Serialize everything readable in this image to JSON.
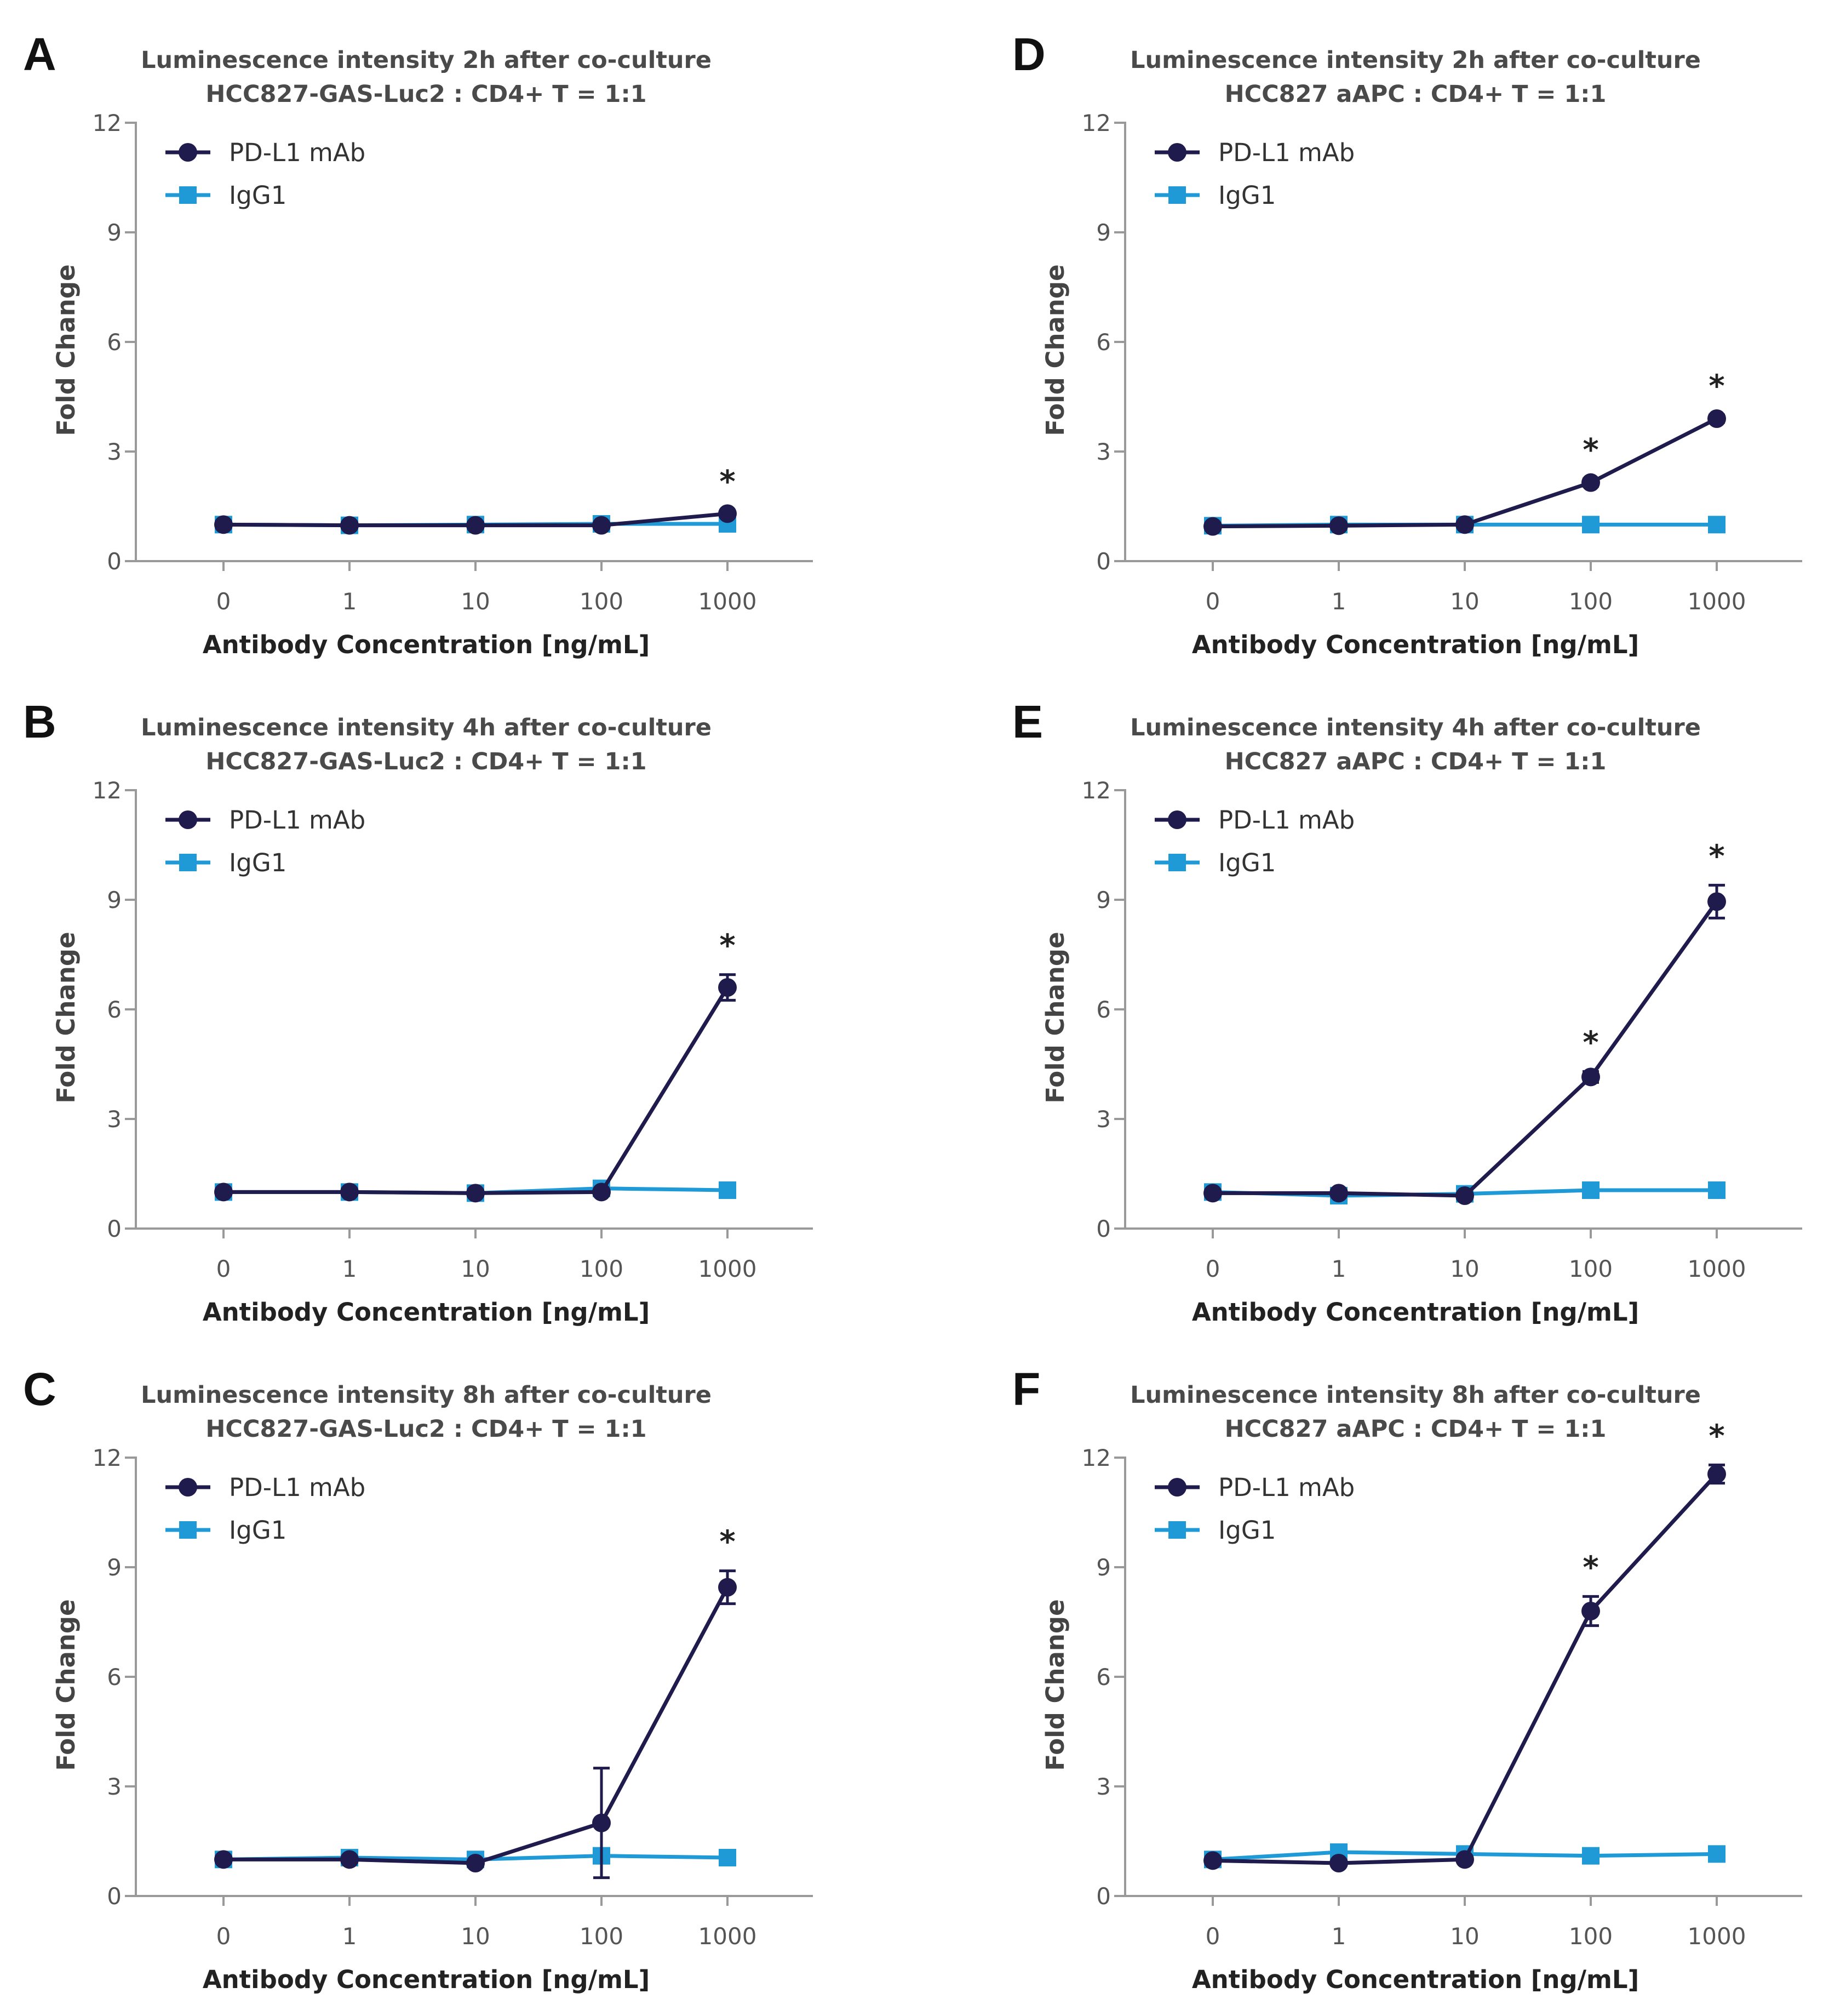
{
  "colors": {
    "pd_l1": "#1f1b4d",
    "igg1": "#1f9ad6",
    "axis": "#999999"
  },
  "chart_data": [
    {
      "panel": "A",
      "type": "line",
      "title": "Luminescence intensity 2h after co-culture",
      "subtitle": "HCC827-GAS-Luc2 : CD4+ T = 1:1",
      "xlabel": "Antibody  Concentration  [ng/mL]",
      "ylabel": "Fold Change",
      "categories": [
        "0",
        "1",
        "10",
        "100",
        "1000"
      ],
      "yticks": [
        "0",
        "3",
        "6",
        "9",
        "12"
      ],
      "ylim": [
        0,
        12
      ],
      "series": [
        {
          "name": "PD-L1 mAb",
          "marker": "circle",
          "values": [
            1.0,
            0.98,
            0.98,
            0.98,
            1.3
          ],
          "errors": [
            0,
            0,
            0,
            0,
            0.08
          ],
          "significance": [
            "",
            "",
            "",
            "",
            "*"
          ]
        },
        {
          "name": "IgG1",
          "marker": "square",
          "values": [
            1.0,
            0.98,
            1.0,
            1.02,
            1.02
          ],
          "errors": [
            0,
            0,
            0,
            0,
            0
          ]
        }
      ]
    },
    {
      "panel": "B",
      "type": "line",
      "title": "Luminescence intensity 4h after co-culture",
      "subtitle": "HCC827-GAS-Luc2 : CD4+ T = 1:1",
      "xlabel": "Antibody  Concentration  [ng/mL]",
      "ylabel": "Fold Change",
      "categories": [
        "0",
        "1",
        "10",
        "100",
        "1000"
      ],
      "yticks": [
        "0",
        "3",
        "6",
        "9",
        "12"
      ],
      "ylim": [
        0,
        12
      ],
      "series": [
        {
          "name": "PD-L1 mAb",
          "marker": "circle",
          "values": [
            1.0,
            1.0,
            0.97,
            1.0,
            6.6
          ],
          "errors": [
            0,
            0,
            0,
            0,
            0.35
          ],
          "significance": [
            "",
            "",
            "",
            "",
            "*"
          ]
        },
        {
          "name": "IgG1",
          "marker": "square",
          "values": [
            1.0,
            1.0,
            0.97,
            1.1,
            1.05
          ],
          "errors": [
            0,
            0,
            0,
            0,
            0
          ]
        }
      ]
    },
    {
      "panel": "C",
      "type": "line",
      "title": "Luminescence intensity 8h after co-culture",
      "subtitle": "HCC827-GAS-Luc2 : CD4+ T = 1:1",
      "xlabel": "Antibody  Concentration  [ng/mL]",
      "ylabel": "Fold Change",
      "categories": [
        "0",
        "1",
        "10",
        "100",
        "1000"
      ],
      "yticks": [
        "0",
        "3",
        "6",
        "9",
        "12"
      ],
      "ylim": [
        0,
        12
      ],
      "series": [
        {
          "name": "PD-L1 mAb",
          "marker": "circle",
          "values": [
            1.0,
            1.0,
            0.9,
            2.0,
            8.45
          ],
          "errors": [
            0,
            0,
            0,
            1.5,
            0.45
          ],
          "significance": [
            "",
            "",
            "",
            "",
            "*"
          ]
        },
        {
          "name": "IgG1",
          "marker": "square",
          "values": [
            1.0,
            1.05,
            1.0,
            1.1,
            1.05
          ],
          "errors": [
            0,
            0,
            0,
            0,
            0
          ]
        }
      ]
    },
    {
      "panel": "D",
      "type": "line",
      "title": "Luminescence intensity 2h after co-culture",
      "subtitle": "HCC827 aAPC : CD4+ T = 1:1",
      "xlabel": "Antibody  Concentration  [ng/mL]",
      "ylabel": "Fold Change",
      "categories": [
        "0",
        "1",
        "10",
        "100",
        "1000"
      ],
      "yticks": [
        "0",
        "3",
        "6",
        "9",
        "12"
      ],
      "ylim": [
        0,
        12
      ],
      "series": [
        {
          "name": "PD-L1 mAb",
          "marker": "circle",
          "values": [
            0.95,
            0.97,
            1.0,
            2.15,
            3.9
          ],
          "errors": [
            0,
            0,
            0,
            0.1,
            0.1
          ],
          "significance": [
            "",
            "",
            "",
            "*",
            "*"
          ]
        },
        {
          "name": "IgG1",
          "marker": "square",
          "values": [
            0.97,
            1.0,
            1.0,
            1.0,
            1.0
          ],
          "errors": [
            0,
            0,
            0,
            0,
            0
          ]
        }
      ]
    },
    {
      "panel": "E",
      "type": "line",
      "title": "Luminescence intensity 4h after co-culture",
      "subtitle": "HCC827 aAPC : CD4+ T = 1:1",
      "xlabel": "Antibody  Concentration  [ng/mL]",
      "ylabel": "Fold Change",
      "categories": [
        "0",
        "1",
        "10",
        "100",
        "1000"
      ],
      "yticks": [
        "0",
        "3",
        "6",
        "9",
        "12"
      ],
      "ylim": [
        0,
        12
      ],
      "series": [
        {
          "name": "PD-L1 mAb",
          "marker": "circle",
          "values": [
            0.97,
            0.97,
            0.9,
            4.15,
            8.95
          ],
          "errors": [
            0,
            0,
            0,
            0.15,
            0.45
          ],
          "significance": [
            "",
            "",
            "",
            "*",
            "*"
          ]
        },
        {
          "name": "IgG1",
          "marker": "square",
          "values": [
            1.0,
            0.9,
            0.95,
            1.05,
            1.05
          ],
          "errors": [
            0,
            0,
            0,
            0,
            0
          ]
        }
      ]
    },
    {
      "panel": "F",
      "type": "line",
      "title": "Luminescence intensity 8h after co-culture",
      "subtitle": "HCC827 aAPC : CD4+ T = 1:1",
      "xlabel": "Antibody  Concentration  [ng/mL]",
      "ylabel": "Fold Change",
      "categories": [
        "0",
        "1",
        "10",
        "100",
        "1000"
      ],
      "yticks": [
        "0",
        "3",
        "6",
        "9",
        "12"
      ],
      "ylim": [
        0,
        12
      ],
      "series": [
        {
          "name": "PD-L1 mAb",
          "marker": "circle",
          "values": [
            0.97,
            0.9,
            1.0,
            7.8,
            11.55
          ],
          "errors": [
            0,
            0,
            0,
            0.4,
            0.25
          ],
          "significance": [
            "",
            "",
            "",
            "*",
            "*"
          ]
        },
        {
          "name": "IgG1",
          "marker": "square",
          "values": [
            1.0,
            1.2,
            1.15,
            1.1,
            1.15
          ],
          "errors": [
            0,
            0,
            0,
            0,
            0
          ]
        }
      ]
    }
  ]
}
